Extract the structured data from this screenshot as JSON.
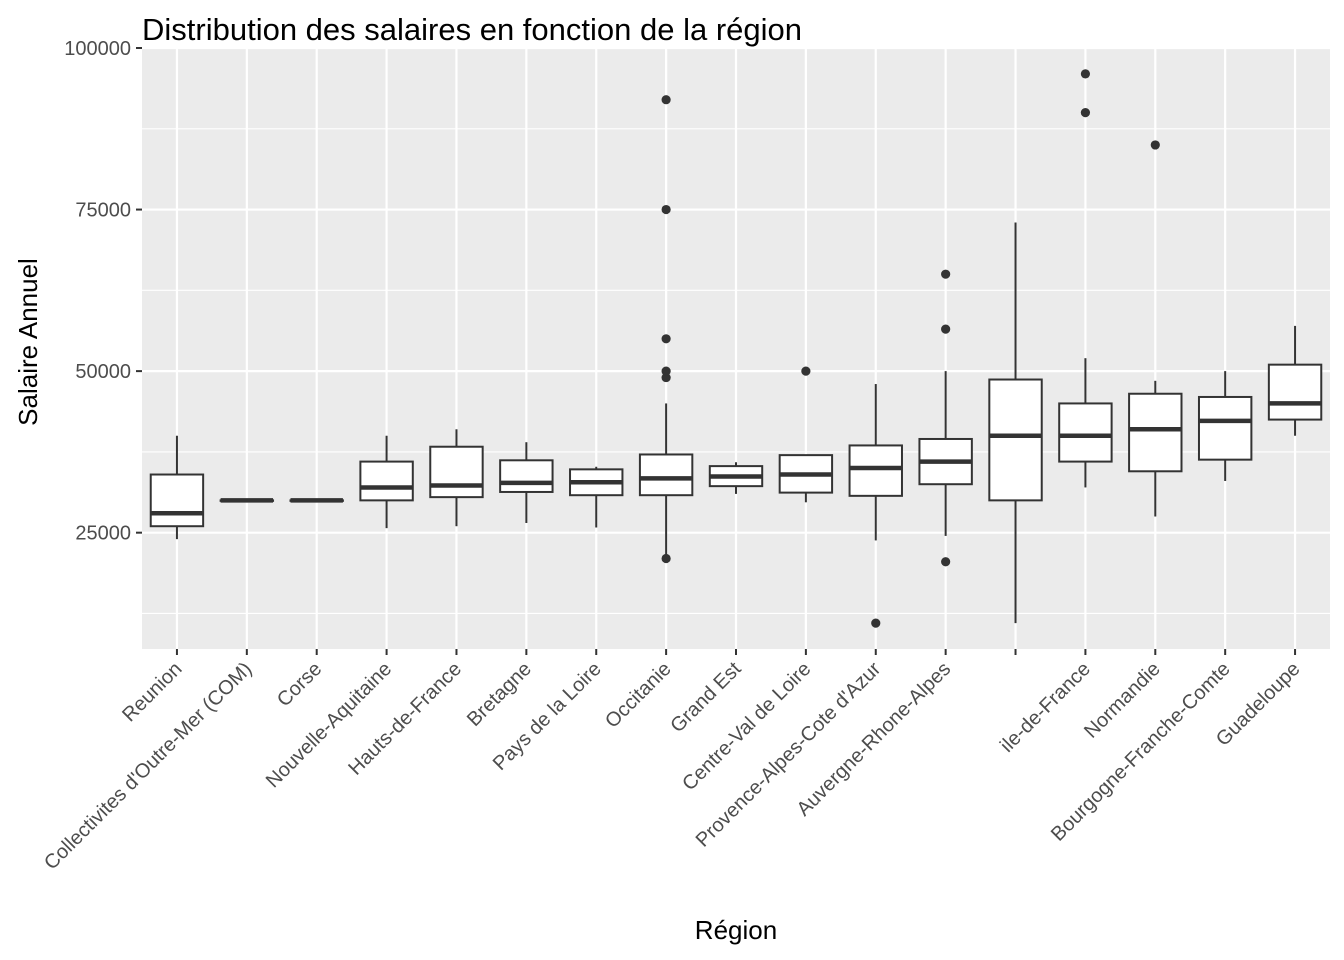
{
  "chart_data": {
    "type": "boxplot",
    "title": "Distribution des salaires en fonction de la région",
    "xlabel": "Région",
    "ylabel": "Salaire Annuel",
    "ylim": [
      7000,
      100000
    ],
    "yticks": [
      25000,
      50000,
      75000,
      100000
    ],
    "ytick_labels": [
      "25000",
      "50000",
      "75000",
      "100000"
    ],
    "grid": true,
    "legend": "none",
    "colors": {
      "panel": "#ebebeb",
      "grid": "#ffffff",
      "box_fill": "#ffffff",
      "box_line": "#333333",
      "outlier": "#333333",
      "tick": "#333333",
      "tick_label": "#4d4d4d"
    },
    "categories": [
      "Reunion",
      "Collectivites d'Outre-Mer (COM)",
      "Corse",
      "Nouvelle-Aquitaine",
      "Hauts-de-France",
      "Bretagne",
      "Pays de la Loire",
      "Occitanie",
      "Grand Est",
      "Centre-Val de Loire",
      "Provence-Alpes-Cote d'Azur",
      "Auvergne-Rhone-Alpes",
      "",
      "ile-de-France",
      "Normandie",
      "Bourgogne-Franche-Comte",
      "Guadeloupe"
    ],
    "boxes": [
      {
        "category": "Reunion",
        "min": 24000,
        "q1": 26000,
        "median": 28000,
        "q3": 34000,
        "max": 40000,
        "outliers": []
      },
      {
        "category": "Collectivites d'Outre-Mer (COM)",
        "min": 30000,
        "q1": 30000,
        "median": 30000,
        "q3": 30000,
        "max": 30000,
        "outliers": []
      },
      {
        "category": "Corse",
        "min": 30000,
        "q1": 30000,
        "median": 30000,
        "q3": 30000,
        "max": 30000,
        "outliers": []
      },
      {
        "category": "Nouvelle-Aquitaine",
        "min": 25700,
        "q1": 30000,
        "median": 32000,
        "q3": 36000,
        "max": 40000,
        "outliers": []
      },
      {
        "category": "Hauts-de-France",
        "min": 26000,
        "q1": 30500,
        "median": 32300,
        "q3": 38300,
        "max": 41000,
        "outliers": []
      },
      {
        "category": "Bretagne",
        "min": 26500,
        "q1": 31300,
        "median": 32700,
        "q3": 36200,
        "max": 39000,
        "outliers": []
      },
      {
        "category": "Pays de la Loire",
        "min": 25800,
        "q1": 30800,
        "median": 32800,
        "q3": 34800,
        "max": 35200,
        "outliers": []
      },
      {
        "category": "Occitanie",
        "min": 21000,
        "q1": 30800,
        "median": 33400,
        "q3": 37100,
        "max": 45000,
        "outliers": [
          21000,
          49000,
          50000,
          55000,
          75000,
          92000
        ]
      },
      {
        "category": "Grand Est",
        "min": 31000,
        "q1": 32200,
        "median": 33700,
        "q3": 35300,
        "max": 35900,
        "outliers": []
      },
      {
        "category": "Centre-Val de Loire",
        "min": 29700,
        "q1": 31200,
        "median": 34000,
        "q3": 37000,
        "max": 37000,
        "outliers": [
          50000
        ]
      },
      {
        "category": "Provence-Alpes-Cote d'Azur",
        "min": 23800,
        "q1": 30700,
        "median": 35000,
        "q3": 38500,
        "max": 48000,
        "outliers": [
          11000
        ]
      },
      {
        "category": "Auvergne-Rhone-Alpes",
        "min": 24500,
        "q1": 32500,
        "median": 36000,
        "q3": 39500,
        "max": 50000,
        "outliers": [
          20500,
          56500,
          65000
        ]
      },
      {
        "category": "",
        "min": 11000,
        "q1": 30000,
        "median": 40000,
        "q3": 48700,
        "max": 73000,
        "outliers": []
      },
      {
        "category": "ile-de-France",
        "min": 32000,
        "q1": 36000,
        "median": 40000,
        "q3": 45000,
        "max": 52000,
        "outliers": [
          90000,
          96000
        ]
      },
      {
        "category": "Normandie",
        "min": 27500,
        "q1": 34500,
        "median": 41000,
        "q3": 46500,
        "max": 48500,
        "outliers": [
          85000
        ]
      },
      {
        "category": "Bourgogne-Franche-Comte",
        "min": 33000,
        "q1": 36300,
        "median": 42300,
        "q3": 46000,
        "max": 50000,
        "outliers": []
      },
      {
        "category": "Guadeloupe",
        "min": 40000,
        "q1": 42500,
        "median": 45000,
        "q3": 51000,
        "max": 57000,
        "outliers": []
      }
    ]
  }
}
